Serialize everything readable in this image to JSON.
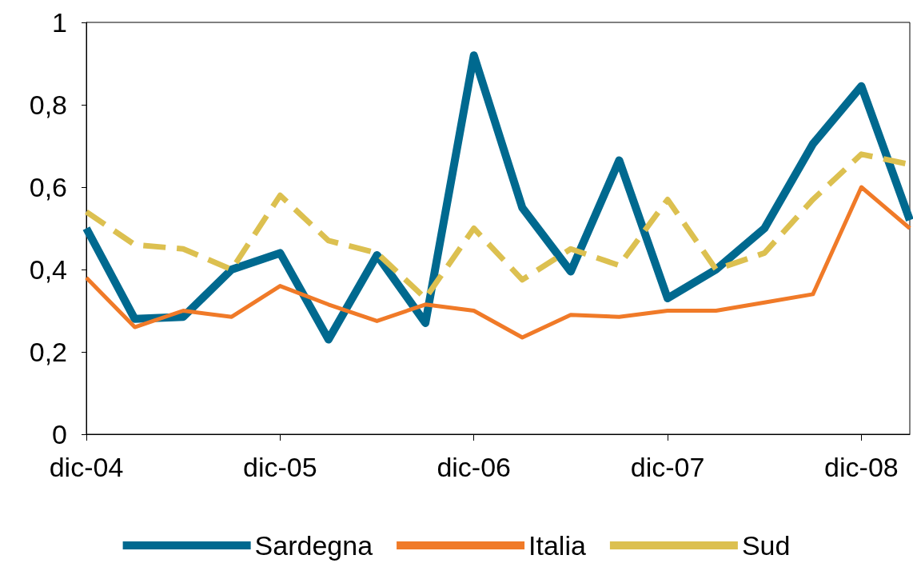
{
  "chart_data": {
    "type": "line",
    "categories": [
      "dic-04",
      null,
      null,
      null,
      "dic-05",
      null,
      null,
      null,
      "dic-06",
      null,
      null,
      null,
      "dic-07",
      null,
      null,
      null,
      "dic-08",
      null
    ],
    "series": [
      {
        "name": "Sardegna",
        "color": "#00698f",
        "values": [
          0.5,
          0.28,
          0.285,
          0.4,
          0.44,
          0.23,
          0.435,
          0.27,
          0.92,
          0.55,
          0.395,
          0.665,
          0.33,
          0.4,
          0.5,
          0.705,
          0.845,
          0.52
        ]
      },
      {
        "name": "Italia",
        "color": "#f07a28",
        "values": [
          0.38,
          0.26,
          0.3,
          0.285,
          0.36,
          0.315,
          0.275,
          0.315,
          0.3,
          0.235,
          0.29,
          0.285,
          0.3,
          0.3,
          0.32,
          0.34,
          0.6,
          0.5
        ]
      },
      {
        "name": "Sud",
        "color": "#dcc050",
        "line_style": "dashed",
        "values": [
          0.54,
          0.46,
          0.45,
          0.4,
          0.58,
          0.47,
          0.44,
          0.33,
          0.5,
          0.375,
          0.45,
          0.41,
          0.57,
          0.4,
          0.44,
          0.57,
          0.68,
          0.655
        ]
      }
    ],
    "ylim": [
      0,
      1
    ],
    "yticks": [
      0,
      {
        "value": 0.2,
        "label": "0,2"
      },
      {
        "value": 0.4,
        "label": "0,4"
      },
      {
        "value": 0.6,
        "label": "0,6"
      },
      {
        "value": 0.8,
        "label": "0,8"
      },
      1
    ],
    "grid": false,
    "legend": "bottom",
    "marker": "none"
  }
}
